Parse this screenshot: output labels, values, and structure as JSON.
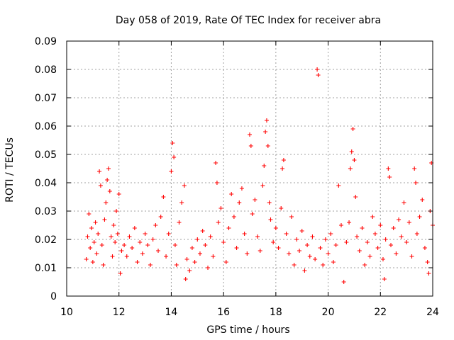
{
  "chart_data": {
    "type": "scatter",
    "title": "Day 058 of 2019, Rate Of TEC Index for receiver abra",
    "xlabel": "GPS time / hours",
    "ylabel": "ROTI / TECUs",
    "xlim": [
      10,
      24
    ],
    "ylim": [
      0,
      0.09
    ],
    "x_ticks": [
      "10",
      "12",
      "14",
      "16",
      "18",
      "20",
      "22",
      "24"
    ],
    "y_ticks": [
      "0",
      "0.01",
      "0.02",
      "0.03",
      "0.04",
      "0.05",
      "0.06",
      "0.07",
      "0.08",
      "0.09"
    ],
    "grid": true,
    "marker": "plus",
    "series_color": "#ff0000",
    "series": [
      {
        "name": "ROTI",
        "points": [
          [
            10.75,
            0.013
          ],
          [
            10.8,
            0.021
          ],
          [
            10.85,
            0.029
          ],
          [
            10.9,
            0.017
          ],
          [
            10.95,
            0.024
          ],
          [
            11.0,
            0.012
          ],
          [
            11.05,
            0.019
          ],
          [
            11.1,
            0.026
          ],
          [
            11.15,
            0.015
          ],
          [
            11.2,
            0.022
          ],
          [
            11.25,
            0.044
          ],
          [
            11.3,
            0.039
          ],
          [
            11.35,
            0.018
          ],
          [
            11.4,
            0.011
          ],
          [
            11.45,
            0.027
          ],
          [
            11.5,
            0.033
          ],
          [
            11.55,
            0.041
          ],
          [
            11.6,
            0.045
          ],
          [
            11.65,
            0.037
          ],
          [
            11.7,
            0.021
          ],
          [
            11.75,
            0.014
          ],
          [
            11.8,
            0.025
          ],
          [
            11.85,
            0.019
          ],
          [
            11.9,
            0.03
          ],
          [
            11.95,
            0.022
          ],
          [
            12.0,
            0.036
          ],
          [
            12.05,
            0.008
          ],
          [
            12.1,
            0.016
          ],
          [
            12.2,
            0.018
          ],
          [
            12.3,
            0.014
          ],
          [
            12.4,
            0.021
          ],
          [
            12.5,
            0.017
          ],
          [
            12.6,
            0.024
          ],
          [
            12.7,
            0.012
          ],
          [
            12.8,
            0.019
          ],
          [
            12.9,
            0.015
          ],
          [
            13.0,
            0.022
          ],
          [
            13.1,
            0.018
          ],
          [
            13.2,
            0.011
          ],
          [
            13.3,
            0.02
          ],
          [
            13.4,
            0.025
          ],
          [
            13.5,
            0.016
          ],
          [
            13.6,
            0.028
          ],
          [
            13.7,
            0.035
          ],
          [
            13.8,
            0.014
          ],
          [
            13.9,
            0.022
          ],
          [
            14.0,
            0.044
          ],
          [
            14.05,
            0.054
          ],
          [
            14.1,
            0.049
          ],
          [
            14.15,
            0.018
          ],
          [
            14.2,
            0.011
          ],
          [
            14.3,
            0.026
          ],
          [
            14.4,
            0.033
          ],
          [
            14.5,
            0.039
          ],
          [
            14.55,
            0.006
          ],
          [
            14.6,
            0.013
          ],
          [
            14.7,
            0.009
          ],
          [
            14.8,
            0.017
          ],
          [
            14.9,
            0.012
          ],
          [
            15.0,
            0.02
          ],
          [
            15.1,
            0.015
          ],
          [
            15.2,
            0.023
          ],
          [
            15.3,
            0.018
          ],
          [
            15.4,
            0.01
          ],
          [
            15.5,
            0.021
          ],
          [
            15.6,
            0.014
          ],
          [
            15.7,
            0.047
          ],
          [
            15.75,
            0.04
          ],
          [
            15.8,
            0.026
          ],
          [
            15.9,
            0.031
          ],
          [
            16.0,
            0.019
          ],
          [
            16.1,
            0.012
          ],
          [
            16.2,
            0.024
          ],
          [
            16.3,
            0.036
          ],
          [
            16.4,
            0.028
          ],
          [
            16.5,
            0.017
          ],
          [
            16.6,
            0.033
          ],
          [
            16.7,
            0.038
          ],
          [
            16.8,
            0.022
          ],
          [
            16.9,
            0.015
          ],
          [
            17.0,
            0.057
          ],
          [
            17.05,
            0.053
          ],
          [
            17.1,
            0.029
          ],
          [
            17.2,
            0.034
          ],
          [
            17.3,
            0.021
          ],
          [
            17.4,
            0.016
          ],
          [
            17.5,
            0.039
          ],
          [
            17.55,
            0.046
          ],
          [
            17.6,
            0.058
          ],
          [
            17.65,
            0.062
          ],
          [
            17.7,
            0.053
          ],
          [
            17.75,
            0.033
          ],
          [
            17.8,
            0.027
          ],
          [
            17.9,
            0.019
          ],
          [
            18.0,
            0.024
          ],
          [
            18.1,
            0.017
          ],
          [
            18.2,
            0.031
          ],
          [
            18.25,
            0.045
          ],
          [
            18.3,
            0.048
          ],
          [
            18.4,
            0.022
          ],
          [
            18.5,
            0.015
          ],
          [
            18.6,
            0.028
          ],
          [
            18.7,
            0.011
          ],
          [
            18.8,
            0.02
          ],
          [
            18.9,
            0.016
          ],
          [
            19.0,
            0.023
          ],
          [
            19.1,
            0.009
          ],
          [
            19.2,
            0.018
          ],
          [
            19.3,
            0.014
          ],
          [
            19.4,
            0.021
          ],
          [
            19.5,
            0.013
          ],
          [
            19.58,
            0.08
          ],
          [
            19.62,
            0.078
          ],
          [
            19.7,
            0.017
          ],
          [
            19.8,
            0.011
          ],
          [
            19.9,
            0.02
          ],
          [
            20.0,
            0.015
          ],
          [
            20.1,
            0.022
          ],
          [
            20.2,
            0.012
          ],
          [
            20.3,
            0.018
          ],
          [
            20.4,
            0.039
          ],
          [
            20.5,
            0.025
          ],
          [
            20.6,
            0.005
          ],
          [
            20.7,
            0.019
          ],
          [
            20.8,
            0.026
          ],
          [
            20.85,
            0.045
          ],
          [
            20.9,
            0.051
          ],
          [
            20.95,
            0.059
          ],
          [
            21.0,
            0.048
          ],
          [
            21.05,
            0.035
          ],
          [
            21.1,
            0.021
          ],
          [
            21.2,
            0.016
          ],
          [
            21.3,
            0.024
          ],
          [
            21.4,
            0.011
          ],
          [
            21.5,
            0.019
          ],
          [
            21.6,
            0.014
          ],
          [
            21.7,
            0.028
          ],
          [
            21.8,
            0.022
          ],
          [
            21.9,
            0.017
          ],
          [
            22.0,
            0.025
          ],
          [
            22.1,
            0.013
          ],
          [
            22.15,
            0.006
          ],
          [
            22.2,
            0.02
          ],
          [
            22.3,
            0.045
          ],
          [
            22.35,
            0.042
          ],
          [
            22.4,
            0.018
          ],
          [
            22.5,
            0.024
          ],
          [
            22.6,
            0.015
          ],
          [
            22.7,
            0.027
          ],
          [
            22.8,
            0.021
          ],
          [
            22.9,
            0.033
          ],
          [
            23.0,
            0.019
          ],
          [
            23.1,
            0.026
          ],
          [
            23.2,
            0.014
          ],
          [
            23.3,
            0.045
          ],
          [
            23.35,
            0.04
          ],
          [
            23.4,
            0.022
          ],
          [
            23.5,
            0.028
          ],
          [
            23.6,
            0.034
          ],
          [
            23.7,
            0.017
          ],
          [
            23.8,
            0.012
          ],
          [
            23.85,
            0.008
          ],
          [
            23.9,
            0.03
          ],
          [
            23.95,
            0.047
          ],
          [
            24.0,
            0.025
          ]
        ]
      }
    ]
  }
}
